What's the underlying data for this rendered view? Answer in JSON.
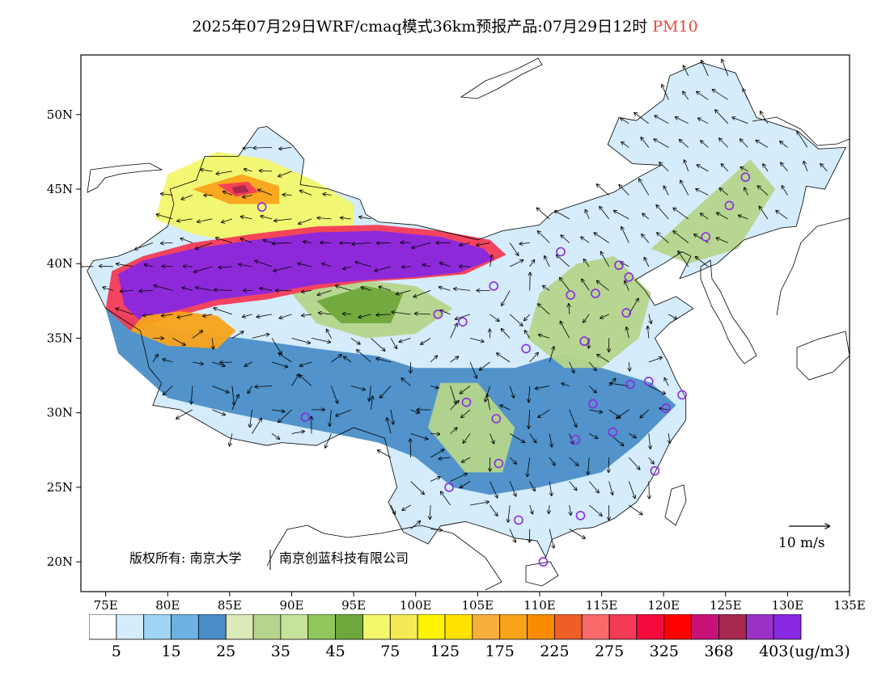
{
  "title": {
    "text": "2025年07月29日WRF/cmaq模式36km预报产品:07月29日12时",
    "pollutant": "PM10"
  },
  "copyright": {
    "part1": "版权所有: 南京大学",
    "part2": "南京创蓝科技有限公司"
  },
  "wind_scale": {
    "label": "10  m/s"
  },
  "map": {
    "lat_labels": [
      "50N",
      "45N",
      "40N",
      "35N",
      "30N",
      "25N",
      "20N"
    ],
    "lat_values": [
      50,
      45,
      40,
      35,
      30,
      25,
      20
    ],
    "lon_labels": [
      "75E",
      "80E",
      "85E",
      "90E",
      "95E",
      "100E",
      "105E",
      "110E",
      "115E",
      "120E",
      "125E",
      "130E",
      "135E"
    ],
    "lon_values": [
      75,
      80,
      85,
      90,
      95,
      100,
      105,
      110,
      115,
      120,
      125,
      130,
      135
    ],
    "extent": {
      "lon_min": 73,
      "lon_max": 135,
      "lat_min": 18,
      "lat_max": 54
    }
  },
  "colorbar": {
    "colors": [
      "#ffffff",
      "#d4ecfb",
      "#9ed5f4",
      "#6db2e0",
      "#4a8ec7",
      "#dce9b9",
      "#b5d58b",
      "#c6e29b",
      "#8fc75b",
      "#6ea83c",
      "#f2f76b",
      "#f5ea55",
      "#fff500",
      "#ffe200",
      "#f8b03c",
      "#f9a31a",
      "#f98b00",
      "#f05e28",
      "#fb6a6a",
      "#f33b56",
      "#f20a3c",
      "#ff0000",
      "#c8127a",
      "#a8284e",
      "#9a32c8",
      "#8828e0"
    ],
    "labels": [
      "5",
      "15",
      "25",
      "35",
      "45",
      "75",
      "125",
      "175",
      "225",
      "275",
      "325",
      "368",
      "403"
    ],
    "unit": "(ug/m3)"
  },
  "cities": [
    {
      "lon": 87.6,
      "lat": 43.8
    },
    {
      "lon": 91.1,
      "lat": 29.7
    },
    {
      "lon": 101.8,
      "lat": 36.6
    },
    {
      "lon": 103.8,
      "lat": 36.1
    },
    {
      "lon": 106.3,
      "lat": 38.5
    },
    {
      "lon": 111.7,
      "lat": 40.8
    },
    {
      "lon": 116.4,
      "lat": 39.9
    },
    {
      "lon": 117.2,
      "lat": 39.1
    },
    {
      "lon": 112.5,
      "lat": 37.9
    },
    {
      "lon": 114.5,
      "lat": 38.0
    },
    {
      "lon": 117.0,
      "lat": 36.7
    },
    {
      "lon": 113.6,
      "lat": 34.8
    },
    {
      "lon": 108.9,
      "lat": 34.3
    },
    {
      "lon": 104.1,
      "lat": 30.7
    },
    {
      "lon": 106.5,
      "lat": 29.6
    },
    {
      "lon": 114.3,
      "lat": 30.6
    },
    {
      "lon": 112.9,
      "lat": 28.2
    },
    {
      "lon": 115.9,
      "lat": 28.7
    },
    {
      "lon": 117.3,
      "lat": 31.9
    },
    {
      "lon": 118.8,
      "lat": 32.1
    },
    {
      "lon": 121.5,
      "lat": 31.2
    },
    {
      "lon": 120.2,
      "lat": 30.3
    },
    {
      "lon": 119.3,
      "lat": 26.1
    },
    {
      "lon": 113.3,
      "lat": 23.1
    },
    {
      "lon": 108.3,
      "lat": 22.8
    },
    {
      "lon": 102.7,
      "lat": 25.0
    },
    {
      "lon": 106.7,
      "lat": 26.6
    },
    {
      "lon": 110.3,
      "lat": 20.0
    },
    {
      "lon": 123.4,
      "lat": 41.8
    },
    {
      "lon": 125.3,
      "lat": 43.9
    },
    {
      "lon": 126.6,
      "lat": 45.8
    }
  ],
  "pollution_zones": [
    {
      "level": 25,
      "lon": [
        75,
        80,
        86,
        92,
        97,
        100,
        104,
        108,
        112,
        115,
        119,
        121,
        118,
        115,
        110,
        106,
        103,
        100,
        97,
        94,
        91,
        88,
        85,
        80,
        76
      ],
      "lat": [
        37,
        35.5,
        35,
        34.3,
        33.8,
        33,
        33,
        33,
        34,
        33,
        32,
        30.5,
        28,
        26,
        25,
        24.5,
        25,
        27,
        28,
        28.5,
        29,
        29.5,
        30,
        31,
        34
      ]
    },
    {
      "level": 35,
      "lon": [
        90,
        95,
        100,
        103,
        100,
        96,
        92
      ],
      "lat": [
        38,
        39,
        38.5,
        37,
        35.3,
        35,
        36
      ]
    },
    {
      "level": 45,
      "lon": [
        92,
        96,
        99,
        98,
        94
      ],
      "lat": [
        37.5,
        38.5,
        38,
        36,
        36
      ]
    },
    {
      "level": 35,
      "lon": [
        110,
        113,
        116,
        119,
        118,
        115,
        112,
        109
      ],
      "lat": [
        38,
        40,
        40.5,
        38,
        35,
        33,
        33,
        35
      ]
    },
    {
      "level": 35,
      "lon": [
        102,
        105,
        108,
        107,
        104,
        101
      ],
      "lat": [
        32,
        32,
        29,
        26,
        26,
        29
      ]
    },
    {
      "level": 35,
      "lon": [
        119,
        123,
        127,
        129,
        126,
        122
      ],
      "lat": [
        41,
        44,
        47,
        45,
        41,
        40
      ]
    },
    {
      "level": 75,
      "lon": [
        80,
        84,
        88,
        92,
        95,
        95,
        90,
        85,
        82,
        79
      ],
      "lat": [
        46,
        47.5,
        47,
        45.5,
        44,
        42,
        41.5,
        41.5,
        42,
        43
      ]
    },
    {
      "level": 175,
      "lon": [
        82,
        86,
        89,
        89,
        85
      ],
      "lat": [
        45,
        46,
        45.2,
        44,
        44
      ]
    },
    {
      "level": 275,
      "lon": [
        84,
        86.5,
        87.3,
        85.5
      ],
      "lat": [
        45.3,
        45.5,
        44.8,
        44.5
      ]
    },
    {
      "level": 368,
      "lon": [
        85.2,
        86.2,
        86.6,
        85.4
      ],
      "lat": [
        45.1,
        45.3,
        44.8,
        44.7
      ]
    },
    {
      "level": 275,
      "lon": [
        75.5,
        78,
        82,
        87,
        92,
        97,
        102,
        106,
        107.3,
        104,
        100,
        96,
        92,
        88,
        84,
        80,
        77,
        75
      ],
      "lat": [
        39.5,
        40.5,
        41.4,
        42,
        42.5,
        42.6,
        42.2,
        41.6,
        40.6,
        39.3,
        39,
        38.8,
        38.3,
        37.6,
        37.2,
        36.3,
        35.5,
        37
      ]
    },
    {
      "level": 403,
      "lon": [
        76,
        78,
        82,
        87,
        92,
        97,
        102,
        105.5,
        106.3,
        103.5,
        100,
        96,
        92,
        88,
        84,
        80,
        78,
        76.5
      ],
      "lat": [
        39.3,
        40.2,
        41,
        41.6,
        42.1,
        42.2,
        41.8,
        41,
        40.3,
        39.4,
        39.1,
        38.9,
        38.6,
        38,
        37.6,
        36.7,
        36,
        37.2
      ]
    },
    {
      "level": 175,
      "lon": [
        77,
        80,
        84,
        85.5,
        84,
        81,
        78
      ],
      "lat": [
        35.5,
        34.5,
        34.3,
        35.5,
        36.5,
        36.8,
        36.5
      ]
    }
  ]
}
